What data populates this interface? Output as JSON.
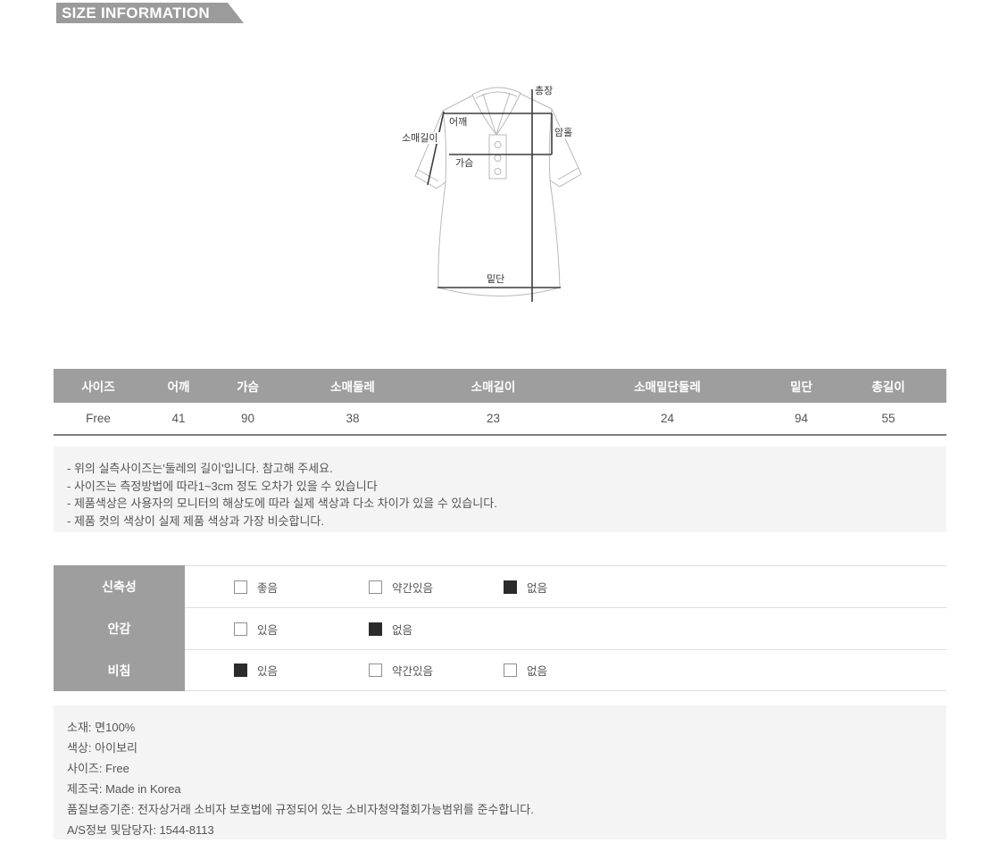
{
  "page": {
    "title": "SIZE INFORMATION"
  },
  "colors": {
    "ribbon_bg": "#9b9b9b",
    "table_header_bg": "#9e9e9e",
    "box_bg": "#f4f4f4",
    "body_text": "#555555",
    "checked_box": "#2b2b2b"
  },
  "diagram": {
    "labels": {
      "total_length": "총장",
      "shoulder": "어깨",
      "armhole": "암홀",
      "sleeve_length": "소매길이",
      "chest": "가슴",
      "hem": "밑단"
    }
  },
  "size_table": {
    "columns": [
      "사이즈",
      "어깨",
      "가슴",
      "소매둘레",
      "소매길이",
      "소매밑단둘레",
      "밑단",
      "총길이"
    ],
    "rows": [
      [
        "Free",
        "41",
        "90",
        "38",
        "23",
        "24",
        "94",
        "55"
      ]
    ]
  },
  "notes": [
    "- 위의 실측사이즈는'둘레의 길이'입니다. 참고해 주세요.",
    "- 사이즈는 측정방법에 따라1~3cm 정도 오차가 있을 수 있습니다",
    "- 제품색상은 사용자의 모니터의 해상도에 따라 실제 색상과 다소 차이가 있을 수 있습니다.",
    "- 제품 컷의 색상이 실제 제품 색상과 가장 비슷합니다."
  ],
  "attributes": [
    {
      "label": "신축성",
      "options": [
        {
          "text": "좋음",
          "checked": false
        },
        {
          "text": "약간있음",
          "checked": false
        },
        {
          "text": "없음",
          "checked": true
        }
      ]
    },
    {
      "label": "안감",
      "options": [
        {
          "text": "있음",
          "checked": false
        },
        {
          "text": "없음",
          "checked": true
        }
      ]
    },
    {
      "label": "비침",
      "options": [
        {
          "text": "있음",
          "checked": true
        },
        {
          "text": "약간있음",
          "checked": false
        },
        {
          "text": "없음",
          "checked": false
        }
      ]
    }
  ],
  "product_info": [
    "소재: 면100%",
    "색상: 아이보리",
    "사이즈: Free",
    "제조국: Made in Korea",
    "품질보증기준: 전자상거래 소비자 보호법에 규정되어 있는 소비자청약철회가능범위를 준수합니다.",
    "A/S정보 및담당자: 1544-8113"
  ]
}
